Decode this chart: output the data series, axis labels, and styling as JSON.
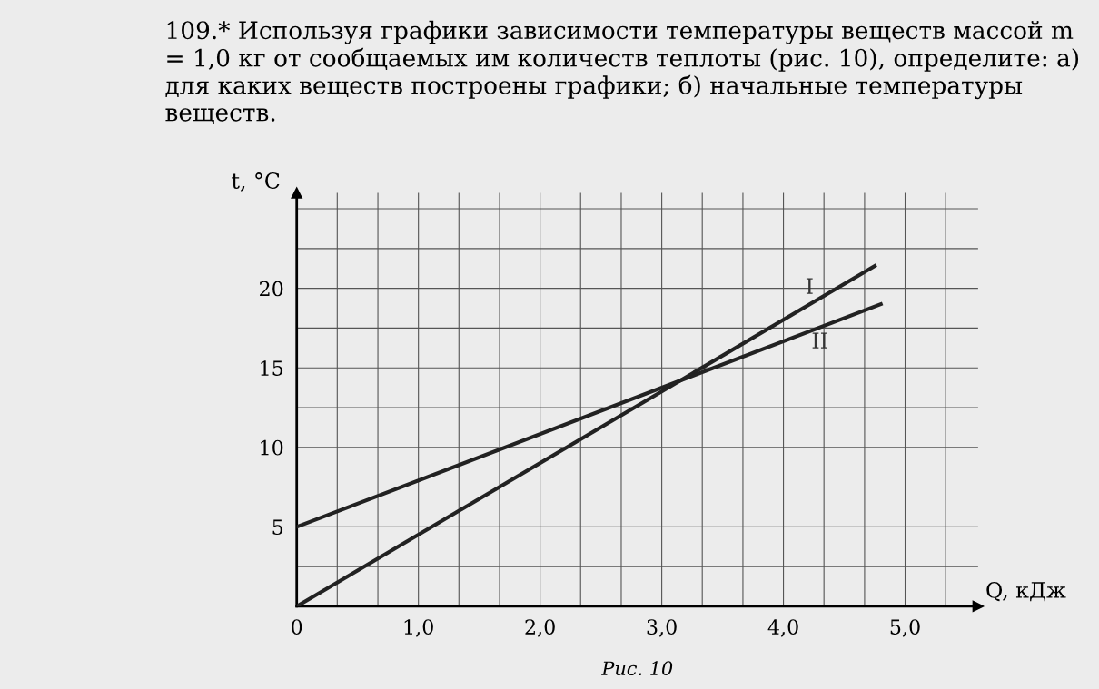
{
  "chart_data": {
    "type": "line",
    "title": "109.* Используя графики зависимости температуры веществ массой m = 1,0 кг от сообщаемых им количеств теплоты (рис. 10), определите: а) для каких веществ построены графики; б) начальные температуры веществ.",
    "xlabel": "Q, кДж",
    "ylabel": "t, °C",
    "annotations": [
      "Рис. 10"
    ],
    "series": [
      {
        "name": "I",
        "color": "#222222",
        "x": [
          0,
          4.75
        ],
        "values": [
          0,
          21.4
        ]
      },
      {
        "name": "II",
        "color": "#222222",
        "x": [
          0,
          4.8
        ],
        "values": [
          5,
          19.0
        ]
      }
    ],
    "xlim": [
      0,
      5.6
    ],
    "ylim": [
      0,
      26
    ],
    "xticks": [
      {
        "value": 0,
        "label": "0"
      },
      {
        "value": 0.333,
        "label": null
      },
      {
        "value": 0.667,
        "label": null
      },
      {
        "value": 1,
        "label": "1,0"
      },
      {
        "value": 1.333,
        "label": null
      },
      {
        "value": 1.667,
        "label": null
      },
      {
        "value": 2,
        "label": "2,0"
      },
      {
        "value": 2.333,
        "label": null
      },
      {
        "value": 2.667,
        "label": null
      },
      {
        "value": 3,
        "label": "3,0"
      },
      {
        "value": 3.333,
        "label": null
      },
      {
        "value": 3.667,
        "label": null
      },
      {
        "value": 4,
        "label": "4,0"
      },
      {
        "value": 4.333,
        "label": null
      },
      {
        "value": 4.667,
        "label": null
      },
      {
        "value": 5,
        "label": "5,0"
      },
      {
        "value": 5.333,
        "label": null
      }
    ],
    "yticks": [
      {
        "value": 0,
        "label": null
      },
      {
        "value": 2.5,
        "label": null
      },
      5,
      {
        "value": 7.5,
        "label": null
      },
      10,
      {
        "value": 12.5,
        "label": null
      },
      15,
      {
        "value": 17.5,
        "label": null
      },
      20,
      {
        "value": 22.5,
        "label": null
      },
      {
        "value": 25,
        "label": null
      }
    ],
    "grid": true,
    "legend": false,
    "marker": "none",
    "line_style": "solid"
  }
}
